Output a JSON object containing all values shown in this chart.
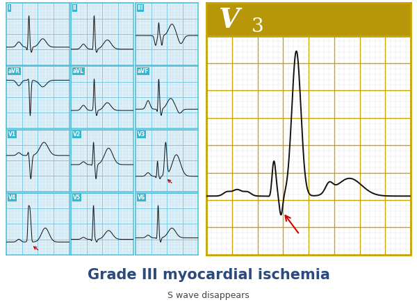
{
  "title": "Grade III myocardial ischemia",
  "subtitle": "S wave disappears",
  "title_color": "#2c4a7c",
  "title_fontsize": 15,
  "subtitle_fontsize": 9,
  "bg_color": "#ffffff",
  "small_panel_bg": "#dff0f8",
  "small_panel_border": "#4ec0d8",
  "large_panel_bg": "#ffffff",
  "large_panel_border": "#c8a400",
  "large_header_bg": "#b8960a",
  "grid_minor_color": "#b8ddf0",
  "grid_major_color": "#7cc8e8",
  "large_grid_minor_color": "#e0e0e0",
  "large_grid_major_color": "#c8a400",
  "label_bg": "#35b5d0",
  "label_text": "#ffffff",
  "lead_labels": [
    "I",
    "II",
    "III",
    "aVR",
    "aVL",
    "aVF",
    "V1",
    "V2",
    "V3",
    "V4",
    "V5",
    "V6"
  ],
  "arrow_color": "#cc0000",
  "fig_width": 6.0,
  "fig_height": 4.42,
  "dpi": 100
}
